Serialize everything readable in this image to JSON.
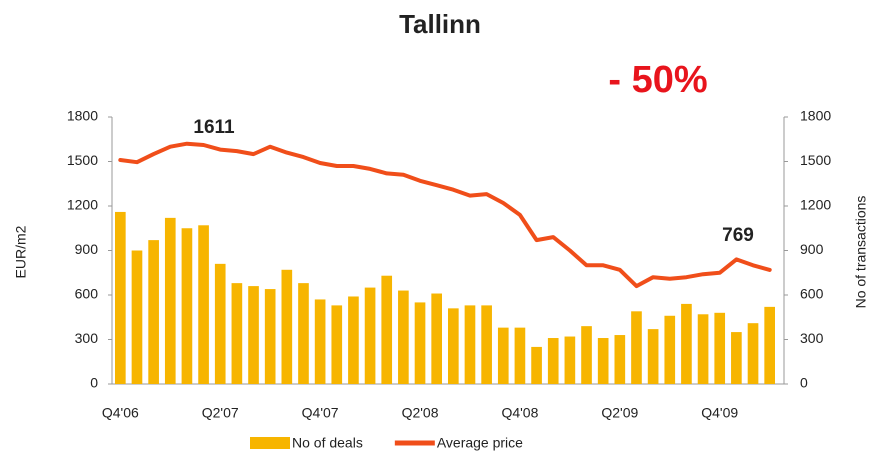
{
  "chart_data": {
    "type": "bar_line",
    "title": "Tallinn",
    "annotations": [
      "- 50%",
      "1611",
      "769"
    ],
    "y_label": "EUR/m2",
    "y2_label": "No of transactions",
    "categories": [
      "Q4'06",
      null,
      null,
      null,
      null,
      null,
      "Q2'07",
      null,
      null,
      null,
      null,
      null,
      "Q4'07",
      null,
      null,
      null,
      null,
      null,
      "Q2'08",
      null,
      null,
      null,
      null,
      null,
      "Q4'08",
      null,
      null,
      null,
      null,
      null,
      "Q2'09",
      null,
      null,
      null,
      null,
      null,
      "Q4'09",
      null,
      null,
      null
    ],
    "series": [
      {
        "name": "No of deals",
        "kind": "bar",
        "axis": "y2",
        "color": "#f7b500",
        "values": [
          1160,
          900,
          970,
          1120,
          1050,
          1070,
          810,
          680,
          660,
          640,
          770,
          680,
          570,
          530,
          590,
          650,
          730,
          630,
          550,
          610,
          510,
          530,
          530,
          380,
          380,
          250,
          310,
          320,
          390,
          310,
          330,
          490,
          370,
          460,
          540,
          470,
          480,
          350,
          410,
          520
        ]
      },
      {
        "name": "Average price",
        "kind": "line",
        "color": "#f04e1a",
        "values": [
          1510,
          1495,
          1550,
          1600,
          1620,
          1611,
          1580,
          1570,
          1550,
          1600,
          1560,
          1530,
          1490,
          1470,
          1470,
          1450,
          1420,
          1410,
          1370,
          1340,
          1310,
          1270,
          1280,
          1220,
          1140,
          970,
          990,
          900,
          800,
          800,
          770,
          660,
          720,
          710,
          720,
          740,
          750,
          840,
          800,
          769
        ]
      }
    ],
    "ylim": [
      0,
      1800
    ],
    "yticks": [
      0,
      300,
      600,
      900,
      1200,
      1500,
      1800
    ],
    "y2lim": [
      0,
      1800
    ],
    "y2ticks": [
      0,
      300,
      600,
      900,
      1200,
      1500,
      1800
    ]
  }
}
